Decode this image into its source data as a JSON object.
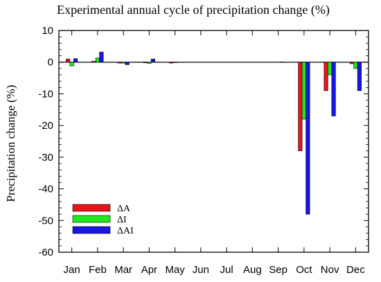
{
  "chart_data": {
    "type": "bar",
    "title": "Experimental annual cycle of precipitation change (%)",
    "xlabel": "",
    "ylabel": "Precipitation change (%)",
    "ylim": [
      -60,
      10
    ],
    "yticks": [
      10,
      0,
      -10,
      -20,
      -30,
      -40,
      -50,
      -60
    ],
    "categories": [
      "Jan",
      "Feb",
      "Mar",
      "Apr",
      "May",
      "Jun",
      "Jul",
      "Aug",
      "Sep",
      "Oct",
      "Nov",
      "Dec"
    ],
    "series": [
      {
        "name": "ΔA",
        "color": "#e8141b",
        "values": [
          1.0,
          0.3,
          -0.3,
          -0.2,
          -0.3,
          0,
          0,
          0,
          0,
          -28,
          -9,
          -0.5
        ]
      },
      {
        "name": "ΔI",
        "color": "#22e81e",
        "values": [
          -1.2,
          1.3,
          -0.3,
          -0.4,
          -0.1,
          0,
          0,
          0,
          0,
          -18,
          -4,
          -2
        ]
      },
      {
        "name": "ΔAI",
        "color": "#1716e2",
        "values": [
          1.1,
          3.2,
          -0.8,
          1.0,
          0,
          0,
          0,
          0,
          0.1,
          -48,
          -17,
          -9
        ]
      }
    ],
    "grid": false,
    "legend_position": "bottom-left"
  }
}
